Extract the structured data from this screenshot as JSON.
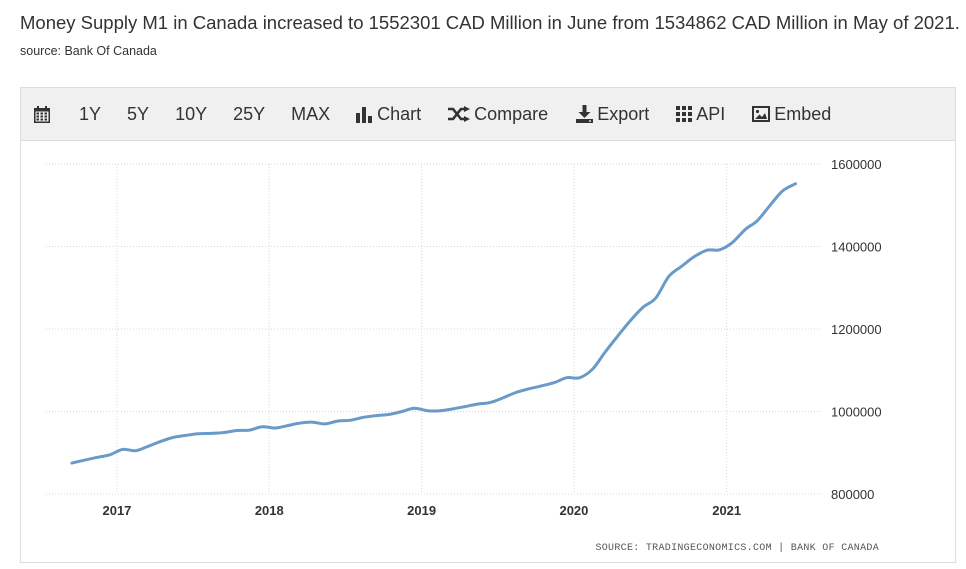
{
  "headline": {
    "text": "Money Supply M1 in Canada increased to 1552301 CAD Million in June from 1534862 CAD Million in May of 2021.",
    "source": "source: Bank Of Canada"
  },
  "toolbar": {
    "calendar_icon": "calendar-icon",
    "ranges": [
      "1Y",
      "5Y",
      "10Y",
      "25Y",
      "MAX"
    ],
    "chart_label": "Chart",
    "compare_label": "Compare",
    "export_label": "Export",
    "api_label": "API",
    "embed_label": "Embed"
  },
  "colors": {
    "line": "#6a9ac8",
    "grid": "#d8d8d8",
    "toolbar_bg": "#f0f0f0",
    "text": "#333333",
    "source_text": "#555555"
  },
  "chart_data": {
    "type": "line",
    "title": "",
    "xlabel": "",
    "ylabel": "",
    "source_note": "SOURCE: TRADINGECONOMICS.COM  |  BANK OF CANADA",
    "x_ticks": [
      "2017",
      "2018",
      "2019",
      "2020",
      "2021"
    ],
    "y_ticks": [
      "800000",
      "1000000",
      "1200000",
      "1400000",
      "1600000"
    ],
    "ylim": [
      800000,
      1600000
    ],
    "xlim": [
      "2016-07-15",
      "2021-08-15"
    ],
    "grid": true,
    "series": [
      {
        "x": [
          "2016-09",
          "2016-10",
          "2016-11",
          "2016-12",
          "2017-01",
          "2017-02",
          "2017-03",
          "2017-04",
          "2017-05",
          "2017-06",
          "2017-07",
          "2017-08",
          "2017-09",
          "2017-10",
          "2017-11",
          "2017-12",
          "2018-01",
          "2018-02",
          "2018-03",
          "2018-04",
          "2018-05",
          "2018-06",
          "2018-07",
          "2018-08",
          "2018-09",
          "2018-10",
          "2018-11",
          "2018-12",
          "2019-01",
          "2019-02",
          "2019-03",
          "2019-04",
          "2019-05",
          "2019-06",
          "2019-07",
          "2019-08",
          "2019-09",
          "2019-10",
          "2019-11",
          "2019-12",
          "2020-01",
          "2020-02",
          "2020-03",
          "2020-04",
          "2020-05",
          "2020-06",
          "2020-07",
          "2020-08",
          "2020-09",
          "2020-10",
          "2020-11",
          "2020-12",
          "2021-01",
          "2021-02",
          "2021-03",
          "2021-04",
          "2021-05",
          "2021-06"
        ],
        "values": [
          875000,
          882000,
          889000,
          895000,
          908000,
          905000,
          915000,
          927000,
          937000,
          942000,
          946000,
          947000,
          949000,
          954000,
          955000,
          963000,
          960000,
          966000,
          972000,
          974000,
          970000,
          977000,
          979000,
          986000,
          990000,
          993000,
          1000000,
          1008000,
          1002000,
          1002000,
          1006000,
          1012000,
          1018000,
          1022000,
          1033000,
          1046000,
          1055000,
          1062000,
          1070000,
          1082000,
          1082000,
          1103000,
          1143000,
          1183000,
          1220000,
          1253000,
          1275000,
          1327000,
          1352000,
          1375000,
          1391000,
          1392000,
          1410000,
          1442000,
          1462000,
          1500000,
          1534862,
          1552301
        ]
      }
    ]
  }
}
